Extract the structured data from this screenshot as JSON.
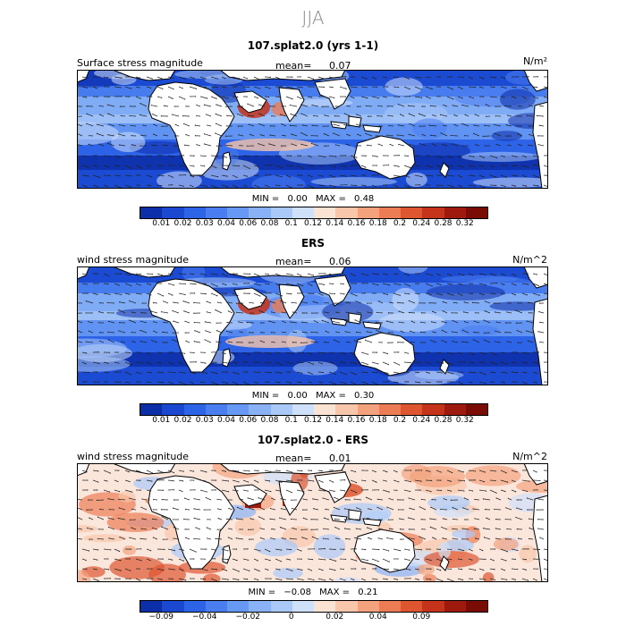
{
  "season": "JJA",
  "panels": [
    {
      "title": "107.splat2.0 (yrs 1-1)",
      "label": "Surface stress magnitude",
      "mean_label": "mean=",
      "mean_value": "0.07",
      "units": "N/m²",
      "min_label": "MIN =",
      "min_value": "0.00",
      "max_label": "MAX =",
      "max_value": "0.48",
      "colorbar_ticks": [
        "0.01",
        "0.02",
        "0.03",
        "0.04",
        "0.06",
        "0.08",
        "0.1",
        "0.12",
        "0.14",
        "0.16",
        "0.18",
        "0.2",
        "0.24",
        "0.28",
        "0.32"
      ],
      "colors": [
        "#0c2ea8",
        "#1a48d0",
        "#2d63e6",
        "#4a7ef0",
        "#6798f3",
        "#89b2f6",
        "#aac9f8",
        "#cfe0fa",
        "#fbe3d4",
        "#f8c6aa",
        "#f3a27d",
        "#ec7c54",
        "#de5630",
        "#c4331a",
        "#9e1a0e",
        "#7a0c06"
      ],
      "map_style": "low"
    },
    {
      "title": "ERS",
      "label": "wind stress magnitude",
      "mean_label": "mean=",
      "mean_value": "0.06",
      "units": "N/m^2",
      "min_label": "MIN =",
      "min_value": "0.00",
      "max_label": "MAX =",
      "max_value": "0.30",
      "colorbar_ticks": [
        "0.01",
        "0.02",
        "0.03",
        "0.04",
        "0.06",
        "0.08",
        "0.1",
        "0.12",
        "0.14",
        "0.16",
        "0.18",
        "0.2",
        "0.24",
        "0.28",
        "0.32"
      ],
      "colors": [
        "#0c2ea8",
        "#1a48d0",
        "#2d63e6",
        "#4a7ef0",
        "#6798f3",
        "#89b2f6",
        "#aac9f8",
        "#cfe0fa",
        "#fbe3d4",
        "#f8c6aa",
        "#f3a27d",
        "#ec7c54",
        "#de5630",
        "#c4331a",
        "#9e1a0e",
        "#7a0c06"
      ],
      "map_style": "low"
    },
    {
      "title": "107.splat2.0 - ERS",
      "label": "wind stress magnitude",
      "mean_label": "mean=",
      "mean_value": "0.01",
      "units": "N/m^2",
      "min_label": "MIN =",
      "min_value": "−0.08",
      "max_label": "MAX =",
      "max_value": "0.21",
      "colorbar_ticks": [
        "−0.09",
        "",
        "−0.04",
        "",
        "−0.02",
        "",
        "0",
        "",
        "0.02",
        "",
        "0.04",
        "",
        "0.09"
      ],
      "colors": [
        "#0c2ea8",
        "#1a48d0",
        "#2d63e6",
        "#4a7ef0",
        "#6798f3",
        "#89b2f6",
        "#aac9f8",
        "#cfe0fa",
        "#fbe3d4",
        "#f8c6aa",
        "#f3a27d",
        "#ec7c54",
        "#de5630",
        "#c4331a",
        "#9e1a0e",
        "#7a0c06"
      ],
      "map_style": "diff"
    }
  ]
}
